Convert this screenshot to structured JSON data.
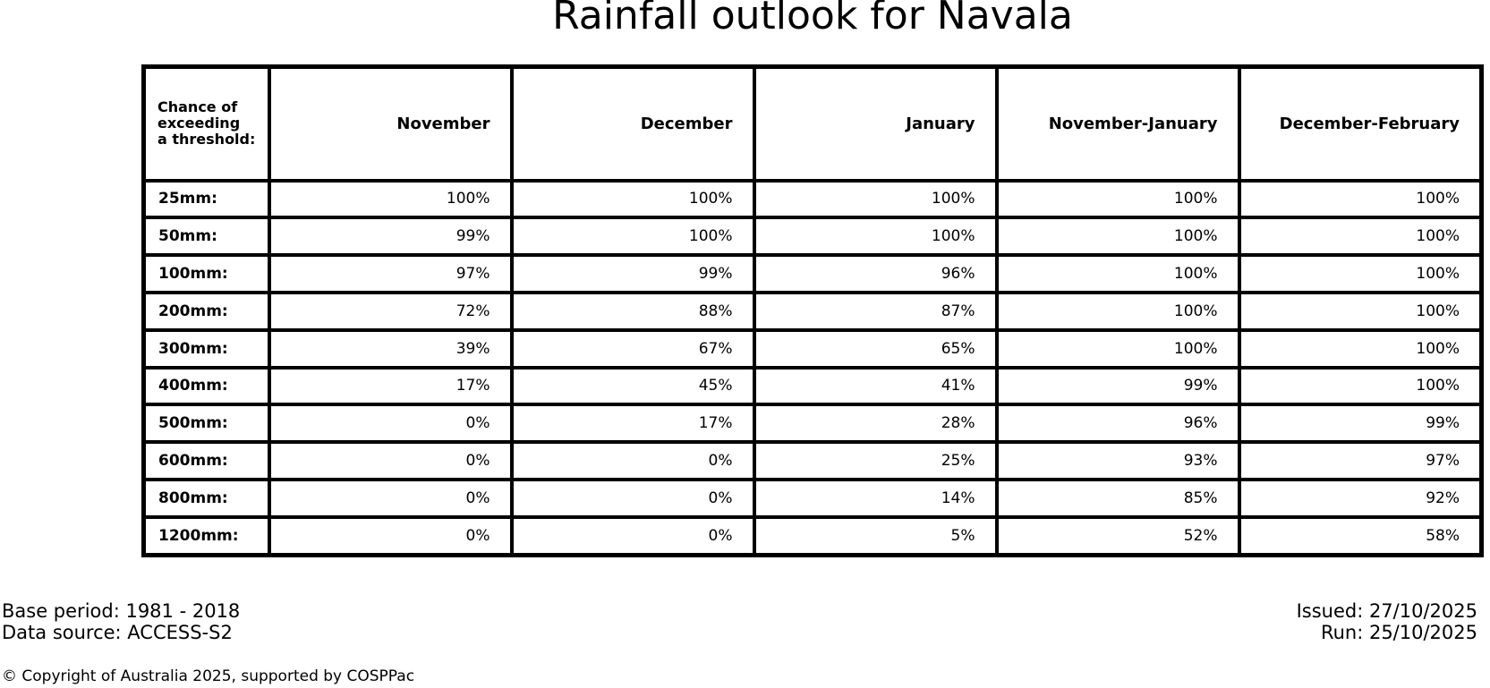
{
  "title": "Rainfall outlook for Navala",
  "table": {
    "corner_header": "Chance of\nexceeding\na threshold:",
    "columns": [
      "November",
      "December",
      "January",
      "November-January",
      "December-February"
    ],
    "rows": [
      {
        "label": "25mm:",
        "values": [
          "100%",
          "100%",
          "100%",
          "100%",
          "100%"
        ]
      },
      {
        "label": "50mm:",
        "values": [
          "99%",
          "100%",
          "100%",
          "100%",
          "100%"
        ]
      },
      {
        "label": "100mm:",
        "values": [
          "97%",
          "99%",
          "96%",
          "100%",
          "100%"
        ]
      },
      {
        "label": "200mm:",
        "values": [
          "72%",
          "88%",
          "87%",
          "100%",
          "100%"
        ]
      },
      {
        "label": "300mm:",
        "values": [
          "39%",
          "67%",
          "65%",
          "100%",
          "100%"
        ]
      },
      {
        "label": "400mm:",
        "values": [
          "17%",
          "45%",
          "41%",
          "99%",
          "100%"
        ]
      },
      {
        "label": "500mm:",
        "values": [
          "0%",
          "17%",
          "28%",
          "96%",
          "99%"
        ]
      },
      {
        "label": "600mm:",
        "values": [
          "0%",
          "0%",
          "25%",
          "93%",
          "97%"
        ]
      },
      {
        "label": "800mm:",
        "values": [
          "0%",
          "0%",
          "14%",
          "85%",
          "92%"
        ]
      },
      {
        "label": "1200mm:",
        "values": [
          "0%",
          "0%",
          "5%",
          "52%",
          "58%"
        ]
      }
    ]
  },
  "footer": {
    "base_period": "Base period: 1981 - 2018",
    "data_source": "Data source: ACCESS-S2",
    "issued": "Issued: 27/10/2025",
    "run": "Run: 25/10/2025",
    "copyright": "© Copyright of Australia 2025, supported by COSPPac"
  },
  "colors": {
    "text": "#000000",
    "border": "#000000",
    "background": "#ffffff"
  },
  "chart_data": {
    "type": "table",
    "title": "Rainfall outlook for Navala",
    "row_header": "Chance of exceeding a threshold:",
    "columns": [
      "November",
      "December",
      "January",
      "November-January",
      "December-February"
    ],
    "thresholds_mm": [
      25,
      50,
      100,
      200,
      300,
      400,
      500,
      600,
      800,
      1200
    ],
    "probabilities_percent": [
      [
        100,
        100,
        100,
        100,
        100
      ],
      [
        99,
        100,
        100,
        100,
        100
      ],
      [
        97,
        99,
        96,
        100,
        100
      ],
      [
        72,
        88,
        87,
        100,
        100
      ],
      [
        39,
        67,
        65,
        100,
        100
      ],
      [
        17,
        45,
        41,
        99,
        100
      ],
      [
        0,
        17,
        28,
        96,
        99
      ],
      [
        0,
        0,
        25,
        93,
        97
      ],
      [
        0,
        0,
        14,
        85,
        92
      ],
      [
        0,
        0,
        5,
        52,
        58
      ]
    ]
  }
}
